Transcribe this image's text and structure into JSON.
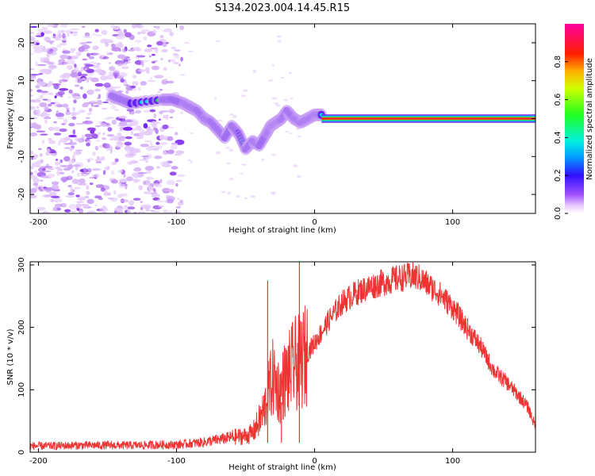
{
  "title": "S134.2023.004.14.45.R15",
  "chart_data": [
    {
      "type": "heatmap",
      "xlabel": "Height of straight line (km)",
      "ylabel": "Frequency (Hz)",
      "xlim": [
        -206,
        160
      ],
      "ylim": [
        -25,
        25
      ],
      "xticks": [
        -200,
        -100,
        0,
        100
      ],
      "yticks": [
        -20,
        -10,
        0,
        10,
        20
      ],
      "trace": {
        "x": [
          -147,
          -140,
          -133,
          -110,
          -103,
          -95,
          -90,
          -85,
          -80,
          -75,
          -70,
          -65,
          -60,
          -55,
          -50,
          -45,
          -40,
          -35,
          -32,
          -28,
          -24,
          -20,
          -15,
          -10,
          -5,
          0,
          5,
          10,
          20,
          60,
          100,
          140,
          160
        ],
        "y": [
          6,
          5,
          4,
          5,
          5,
          4,
          3,
          2,
          0,
          -1,
          -3,
          -5,
          -2,
          -4,
          -8,
          -6,
          -7,
          -4,
          -2,
          -1,
          0,
          2,
          0,
          -1,
          0,
          1,
          1,
          0,
          0,
          0,
          0,
          0,
          0
        ]
      },
      "colorbar": {
        "label": "Normalized spectral amplitude",
        "ticks": [
          "0.0",
          "0.2",
          "0.4",
          "0.6",
          "0.8"
        ],
        "tick_values": [
          0.0,
          0.2,
          0.4,
          0.6,
          0.8
        ],
        "range": [
          0,
          1
        ]
      }
    },
    {
      "type": "line",
      "xlabel": "Height of straight line (km)",
      "ylabel": "SNR (10 * v/v)",
      "xlim": [
        -206,
        160
      ],
      "ylim": [
        0,
        305
      ],
      "xticks": [
        -200,
        -100,
        0,
        100
      ],
      "yticks": [
        0,
        100,
        200,
        300
      ],
      "color": "#ee3333",
      "series": [
        {
          "name": "SNR",
          "x": [
            -206,
            -190,
            -170,
            -150,
            -130,
            -110,
            -100,
            -90,
            -80,
            -70,
            -60,
            -50,
            -45,
            -40,
            -38,
            -35,
            -33,
            -30,
            -28,
            -25,
            -22,
            -20,
            -15,
            -10,
            -5,
            0,
            10,
            20,
            30,
            40,
            50,
            60,
            70,
            75,
            80,
            90,
            100,
            110,
            120,
            130,
            140,
            150,
            155,
            160
          ],
          "y": [
            10,
            10,
            11,
            11,
            11,
            12,
            12,
            14,
            16,
            20,
            24,
            26,
            30,
            50,
            60,
            80,
            100,
            120,
            110,
            95,
            115,
            120,
            140,
            145,
            160,
            175,
            210,
            240,
            255,
            265,
            272,
            278,
            282,
            280,
            272,
            255,
            232,
            200,
            170,
            130,
            110,
            85,
            70,
            40
          ]
        }
      ],
      "spikes": [
        {
          "x": -34,
          "y": 275
        },
        {
          "x": -24,
          "y": 80
        },
        {
          "x": -11,
          "y": 305
        }
      ]
    }
  ]
}
